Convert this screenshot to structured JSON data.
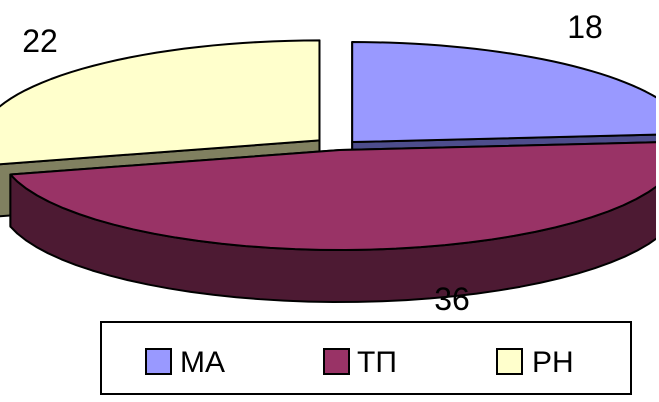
{
  "chart_data": {
    "type": "pie",
    "variant": "3d-exploded",
    "categories": [
      "МА",
      "ТП",
      "РН"
    ],
    "values": [
      18,
      36,
      22
    ],
    "title": "",
    "legend_position": "bottom",
    "colors": {
      "top": [
        "#9999ff",
        "#993366",
        "#ffffcc"
      ],
      "side": [
        "#4d4d8c",
        "#4d1a33",
        "#808060"
      ]
    }
  }
}
